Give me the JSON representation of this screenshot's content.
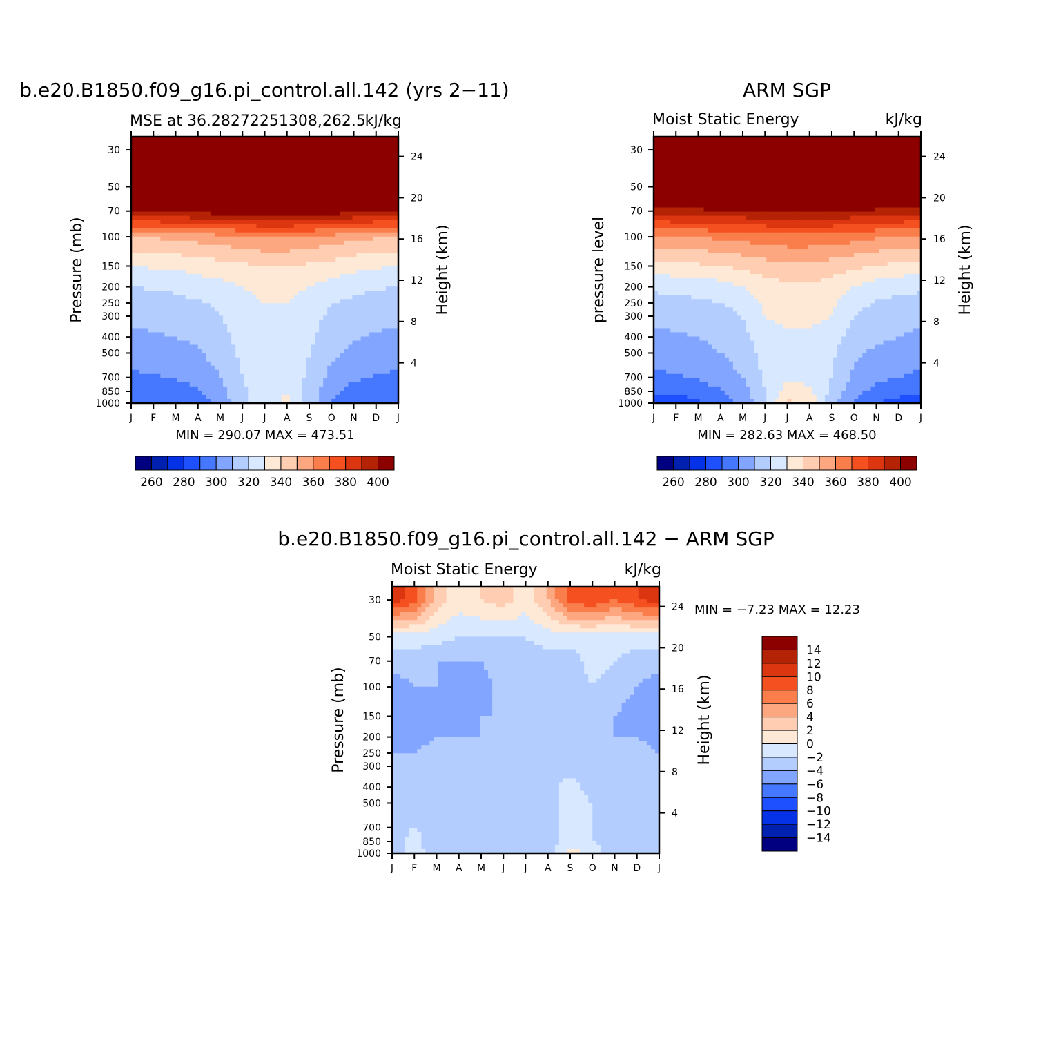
{
  "chart_data": [
    {
      "id": "model",
      "type": "contour",
      "title": "b.e20.B1850.f09_g16.pi_control.all.142 (yrs 2−11)",
      "subtitle_left": "MSE at 36.28272251308,262.5",
      "subtitle_right": "kJ/kg",
      "ylabel": "Pressure (mb)",
      "ylabel_right": "Height (km)",
      "min_max_text": "MIN =  290.07  MAX =  473.51",
      "x_tick_labels": [
        "J",
        "F",
        "M",
        "A",
        "M",
        "J",
        "J",
        "A",
        "S",
        "O",
        "N",
        "D",
        "J"
      ],
      "pressure_ticks": [
        30,
        50,
        70,
        100,
        150,
        200,
        250,
        300,
        400,
        500,
        700,
        850,
        1000
      ],
      "height_ticks_km": [
        4,
        8,
        12,
        16,
        20,
        24
      ],
      "ylim_mb": [
        1000,
        25
      ],
      "levels": [
        250,
        260,
        270,
        280,
        290,
        300,
        310,
        320,
        330,
        340,
        350,
        360,
        370,
        380,
        390,
        400,
        410
      ],
      "profile_months": [
        "J",
        "F",
        "M",
        "A",
        "M",
        "J",
        "J",
        "A",
        "S",
        "O",
        "N",
        "D",
        "J"
      ],
      "profile_surface_mb": 985,
      "profile_pressures_mb": [
        1000,
        850,
        700,
        500,
        400,
        300,
        250,
        200,
        150,
        100,
        70,
        50,
        30
      ],
      "profiles_kJkg": [
        [
          290,
          292,
          298,
          305,
          308,
          312,
          315,
          320,
          330,
          350,
          400,
          440,
          470
        ],
        [
          290,
          293,
          299,
          306,
          309,
          313,
          316,
          321,
          331,
          351,
          401,
          441,
          470
        ],
        [
          292,
          295,
          301,
          307,
          310,
          314,
          317,
          322,
          332,
          352,
          402,
          442,
          471
        ],
        [
          296,
          299,
          304,
          309,
          312,
          316,
          319,
          325,
          334,
          354,
          404,
          444,
          471
        ],
        [
          303,
          306,
          310,
          314,
          316,
          320,
          322,
          327,
          336,
          356,
          406,
          446,
          472
        ],
        [
          318,
          318,
          320,
          322,
          324,
          326,
          328,
          330,
          338,
          358,
          408,
          448,
          473
        ],
        [
          328,
          329,
          327,
          326,
          327,
          328,
          330,
          332,
          340,
          360,
          410,
          450,
          473
        ],
        [
          331,
          330,
          328,
          326,
          327,
          328,
          330,
          332,
          340,
          360,
          410,
          450,
          473
        ],
        [
          316,
          316,
          318,
          320,
          322,
          324,
          326,
          330,
          338,
          358,
          408,
          448,
          473
        ],
        [
          300,
          303,
          307,
          312,
          314,
          318,
          320,
          326,
          336,
          356,
          406,
          446,
          472
        ],
        [
          293,
          296,
          302,
          308,
          311,
          315,
          318,
          323,
          333,
          353,
          403,
          443,
          471
        ],
        [
          290,
          293,
          299,
          306,
          309,
          313,
          316,
          321,
          331,
          351,
          401,
          441,
          470
        ],
        [
          290,
          292,
          298,
          305,
          308,
          312,
          315,
          320,
          330,
          350,
          400,
          440,
          470
        ]
      ],
      "colorbar_labels": [
        "260",
        "280",
        "300",
        "320",
        "340",
        "360",
        "380",
        "400"
      ],
      "colors": [
        "#000080",
        "#0020b0",
        "#0532e6",
        "#1e50ff",
        "#4678ff",
        "#82a5ff",
        "#b4cdff",
        "#d7e8ff",
        "#fee8d6",
        "#fecdb2",
        "#fca77f",
        "#fa7e4b",
        "#f55020",
        "#dc3610",
        "#b42305",
        "#8c0000"
      ]
    },
    {
      "id": "obs",
      "type": "contour",
      "title": "ARM SGP",
      "subtitle_left": "Moist Static Energy",
      "subtitle_right": "kJ/kg",
      "ylabel": "pressure level",
      "ylabel_right": "Height (km)",
      "min_max_text": "MIN =  282.63  MAX =  468.50",
      "x_tick_labels": [
        "J",
        "F",
        "M",
        "A",
        "M",
        "J",
        "J",
        "A",
        "S",
        "O",
        "N",
        "D",
        "J"
      ],
      "pressure_ticks": [
        30,
        50,
        70,
        100,
        150,
        200,
        250,
        300,
        400,
        500,
        700,
        850,
        1000
      ],
      "height_ticks_km": [
        4,
        8,
        12,
        16,
        20,
        24
      ],
      "ylim_mb": [
        1000,
        25
      ],
      "levels": [
        250,
        260,
        270,
        280,
        290,
        300,
        310,
        320,
        330,
        340,
        350,
        360,
        370,
        380,
        390,
        400,
        410
      ],
      "profile_months": [
        "J",
        "F",
        "M",
        "A",
        "M",
        "J",
        "J",
        "A",
        "S",
        "O",
        "N",
        "D",
        "J"
      ],
      "profile_surface_mb": 1000,
      "profile_pressures_mb": [
        1000,
        850,
        700,
        500,
        400,
        300,
        250,
        200,
        150,
        100,
        70,
        50,
        30
      ],
      "profiles_kJkg": [
        [
          283,
          292,
          298,
          304,
          308,
          312,
          316,
          322,
          336,
          358,
          395,
          440,
          468
        ],
        [
          284,
          293,
          299,
          305,
          309,
          313,
          317,
          323,
          337,
          359,
          396,
          441,
          468
        ],
        [
          288,
          295,
          301,
          307,
          310,
          314,
          318,
          324,
          338,
          360,
          397,
          442,
          468
        ],
        [
          294,
          299,
          305,
          310,
          313,
          316,
          320,
          326,
          340,
          362,
          398,
          443,
          468
        ],
        [
          302,
          306,
          310,
          314,
          317,
          320,
          324,
          330,
          342,
          364,
          399,
          444,
          468
        ],
        [
          318,
          320,
          322,
          324,
          326,
          330,
          332,
          336,
          345,
          366,
          400,
          444,
          468
        ],
        [
          342,
          335,
          327,
          324,
          328,
          333,
          336,
          338,
          347,
          367,
          400,
          445,
          468
        ],
        [
          338,
          333,
          326,
          323,
          327,
          333,
          336,
          338,
          347,
          367,
          400,
          445,
          468
        ],
        [
          314,
          317,
          320,
          322,
          325,
          330,
          332,
          336,
          345,
          366,
          400,
          444,
          468
        ],
        [
          298,
          303,
          308,
          312,
          316,
          320,
          324,
          330,
          342,
          364,
          399,
          444,
          468
        ],
        [
          290,
          297,
          303,
          308,
          312,
          315,
          319,
          325,
          339,
          361,
          397,
          442,
          468
        ],
        [
          286,
          294,
          300,
          306,
          310,
          313,
          317,
          323,
          337,
          359,
          396,
          441,
          468
        ],
        [
          283,
          292,
          298,
          304,
          308,
          312,
          316,
          322,
          336,
          358,
          395,
          440,
          468
        ]
      ],
      "colorbar_labels": [
        "260",
        "280",
        "300",
        "320",
        "340",
        "360",
        "380",
        "400"
      ],
      "colors": [
        "#000080",
        "#0020b0",
        "#0532e6",
        "#1e50ff",
        "#4678ff",
        "#82a5ff",
        "#b4cdff",
        "#d7e8ff",
        "#fee8d6",
        "#fecdb2",
        "#fca77f",
        "#fa7e4b",
        "#f55020",
        "#dc3610",
        "#b42305",
        "#8c0000"
      ]
    },
    {
      "id": "diff",
      "type": "contour",
      "title": "b.e20.B1850.f09_g16.pi_control.all.142 − ARM SGP",
      "subtitle_left": "Moist Static Energy",
      "subtitle_right": "kJ/kg",
      "ylabel": "Pressure (mb)",
      "ylabel_right": "Height (km)",
      "min_max_text": "MIN =   −7.23  MAX =   12.23",
      "x_tick_labels": [
        "J",
        "F",
        "M",
        "A",
        "M",
        "J",
        "J",
        "A",
        "S",
        "O",
        "N",
        "D",
        "J"
      ],
      "pressure_ticks": [
        30,
        50,
        70,
        100,
        150,
        200,
        250,
        300,
        400,
        500,
        700,
        850,
        1000
      ],
      "height_ticks_km": [
        4,
        8,
        12,
        16,
        20,
        24
      ],
      "ylim_mb": [
        1000,
        25
      ],
      "levels": [
        -16,
        -14,
        -12,
        -10,
        -8,
        -6,
        -4,
        -2,
        0,
        2,
        4,
        6,
        8,
        10,
        12,
        14,
        16
      ],
      "profile_months": [
        "J",
        "F",
        "M",
        "A",
        "M",
        "J",
        "J",
        "A",
        "S",
        "O",
        "N",
        "D",
        "J"
      ],
      "profile_surface_mb": 985,
      "profile_pressures_mb": [
        1000,
        850,
        700,
        500,
        400,
        300,
        250,
        200,
        150,
        100,
        70,
        50,
        30
      ],
      "profiles_kJkg": [
        [
          -3,
          -3,
          -3,
          -3,
          -3,
          -3,
          -4,
          -5,
          -6,
          -5,
          -3,
          -1,
          11
        ],
        [
          -1,
          -1,
          -2,
          -3,
          -3,
          -3,
          -4,
          -5,
          -5,
          -4,
          -3,
          -1,
          9
        ],
        [
          -3,
          -4,
          -3,
          -3,
          -3,
          -3,
          -3,
          -4,
          -4,
          -4,
          -4,
          -1,
          3
        ],
        [
          -3,
          -3,
          -3,
          -3,
          -3,
          -3,
          -4,
          -4,
          -6,
          -5,
          -4,
          -2,
          1
        ],
        [
          -3,
          -3,
          -3,
          -3,
          -3,
          -3,
          -3,
          -4,
          -4,
          -5,
          -4,
          -2,
          2
        ],
        [
          -3,
          -3,
          -3,
          -3,
          -3,
          -3,
          -3,
          -3,
          -4,
          -3,
          -3,
          -2,
          3
        ],
        [
          -3,
          -4,
          -3,
          -3,
          -3,
          -3,
          -3,
          -3,
          -4,
          -3,
          -3,
          -2,
          1
        ],
        [
          -3,
          -3,
          -3,
          -3,
          -3,
          -3,
          -3,
          -4,
          -3,
          -3,
          -3,
          -1,
          4
        ],
        [
          1,
          -1,
          -1,
          -1,
          -1,
          -3,
          -4,
          -4,
          -3,
          -4,
          -3,
          -1,
          9
        ],
        [
          -1,
          -2,
          -2,
          -2,
          -3,
          -3,
          -3,
          -3,
          -3,
          -2,
          -1,
          -1,
          10
        ],
        [
          -3,
          -3,
          -3,
          -3,
          -3,
          -3,
          -3,
          -4,
          -4,
          -3,
          -2,
          -1,
          8
        ],
        [
          -3,
          -3,
          -3,
          -3,
          -3,
          -3,
          -3,
          -4,
          -5,
          -4,
          -3,
          -1,
          10
        ],
        [
          -3,
          -3,
          -3,
          -3,
          -3,
          -3,
          -4,
          -5,
          -6,
          -5,
          -3,
          -1,
          11
        ]
      ],
      "colorbar_labels": [
        "14",
        "12",
        "10",
        "8",
        "6",
        "4",
        "2",
        "0",
        "−2",
        "−4",
        "−6",
        "−8",
        "−10",
        "−12",
        "−14"
      ],
      "colors": [
        "#000080",
        "#0020b0",
        "#0532e6",
        "#1e50ff",
        "#4678ff",
        "#82a5ff",
        "#b4cdff",
        "#d7e8ff",
        "#fee8d6",
        "#fecdb2",
        "#fca77f",
        "#fa7e4b",
        "#f55020",
        "#dc3610",
        "#b42305",
        "#8c0000"
      ]
    }
  ]
}
